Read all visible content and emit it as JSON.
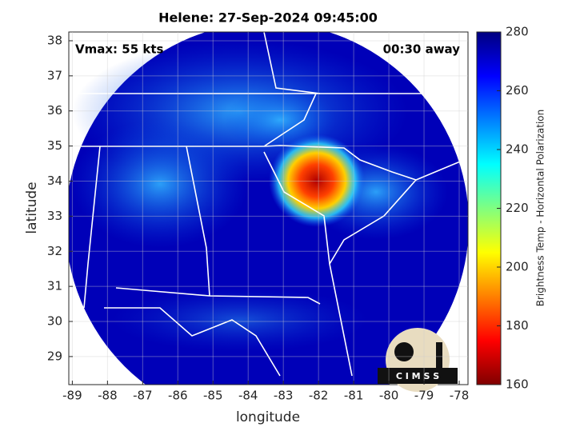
{
  "chart_data": {
    "type": "map",
    "title": "Helene: 27-Sep-2024 09:45:00",
    "x_label": "longitude",
    "y_label": "latitude",
    "annotations": [
      "Vmax: 55 kts",
      "00:30 away"
    ],
    "xlim": [
      -89.1,
      -77.75
    ],
    "xticks": [
      -89,
      -88,
      -87,
      -86,
      -85,
      -84,
      -83,
      -82,
      -81,
      -80,
      -79,
      -78
    ],
    "ylim": [
      28.2,
      38.25
    ],
    "yticks": [
      29,
      30,
      31,
      32,
      33,
      34,
      35,
      36,
      37,
      38
    ],
    "colorbar": {
      "label": "Brightness Temp - Horizontal Polarization",
      "lim": [
        160,
        280
      ],
      "ticks": [
        160,
        180,
        200,
        220,
        240,
        260,
        280
      ],
      "colormap": "jet-reversed"
    },
    "logo": "C I M S S",
    "grid": true
  }
}
